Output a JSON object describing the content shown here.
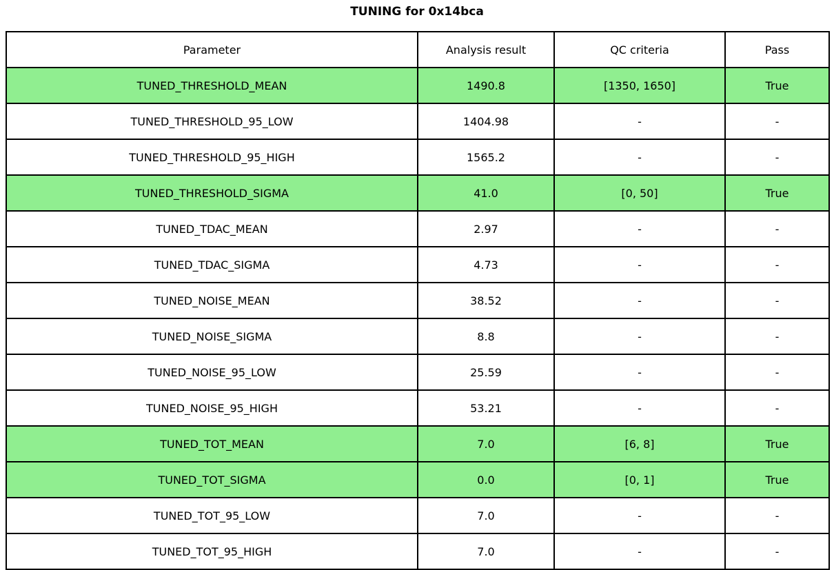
{
  "chart_data": {
    "type": "table",
    "title": "TUNING for 0x14bca",
    "headers": [
      "Parameter",
      "Analysis result",
      "QC criteria",
      "Pass"
    ],
    "highlight_color": "#90EE90",
    "rows": [
      {
        "parameter": "TUNED_THRESHOLD_MEAN",
        "result": "1490.8",
        "criteria": "[1350, 1650]",
        "pass": "True",
        "highlight": true
      },
      {
        "parameter": "TUNED_THRESHOLD_95_LOW",
        "result": "1404.98",
        "criteria": "-",
        "pass": "-",
        "highlight": false
      },
      {
        "parameter": "TUNED_THRESHOLD_95_HIGH",
        "result": "1565.2",
        "criteria": "-",
        "pass": "-",
        "highlight": false
      },
      {
        "parameter": "TUNED_THRESHOLD_SIGMA",
        "result": "41.0",
        "criteria": "[0, 50]",
        "pass": "True",
        "highlight": true
      },
      {
        "parameter": "TUNED_TDAC_MEAN",
        "result": "2.97",
        "criteria": "-",
        "pass": "-",
        "highlight": false
      },
      {
        "parameter": "TUNED_TDAC_SIGMA",
        "result": "4.73",
        "criteria": "-",
        "pass": "-",
        "highlight": false
      },
      {
        "parameter": "TUNED_NOISE_MEAN",
        "result": "38.52",
        "criteria": "-",
        "pass": "-",
        "highlight": false
      },
      {
        "parameter": "TUNED_NOISE_SIGMA",
        "result": "8.8",
        "criteria": "-",
        "pass": "-",
        "highlight": false
      },
      {
        "parameter": "TUNED_NOISE_95_LOW",
        "result": "25.59",
        "criteria": "-",
        "pass": "-",
        "highlight": false
      },
      {
        "parameter": "TUNED_NOISE_95_HIGH",
        "result": "53.21",
        "criteria": "-",
        "pass": "-",
        "highlight": false
      },
      {
        "parameter": "TUNED_TOT_MEAN",
        "result": "7.0",
        "criteria": "[6, 8]",
        "pass": "True",
        "highlight": true
      },
      {
        "parameter": "TUNED_TOT_SIGMA",
        "result": "0.0",
        "criteria": "[0, 1]",
        "pass": "True",
        "highlight": true
      },
      {
        "parameter": "TUNED_TOT_95_LOW",
        "result": "7.0",
        "criteria": "-",
        "pass": "-",
        "highlight": false
      },
      {
        "parameter": "TUNED_TOT_95_HIGH",
        "result": "7.0",
        "criteria": "-",
        "pass": "-",
        "highlight": false
      }
    ]
  }
}
